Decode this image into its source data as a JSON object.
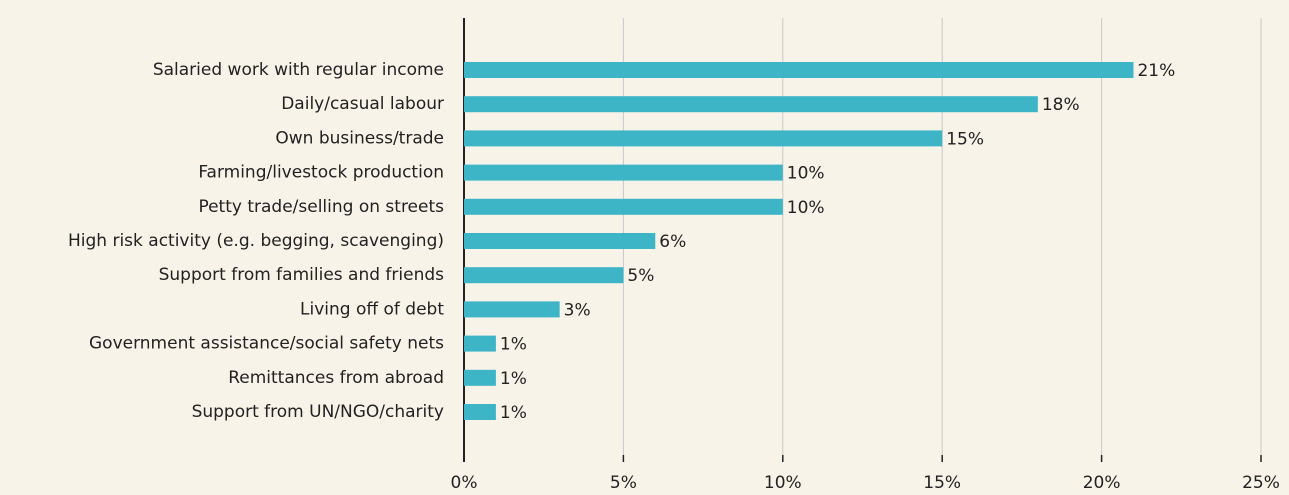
{
  "chart_data": {
    "type": "bar",
    "orientation": "horizontal",
    "categories": [
      "Salaried work with regular income",
      "Daily/casual labour",
      "Own business/trade",
      "Farming/livestock production",
      "Petty trade/selling on streets",
      "High risk activity (e.g. begging, scavenging)",
      "Support from families and friends",
      "Living off of debt",
      "Government assistance/social safety nets",
      "Remittances from abroad",
      "Support from UN/NGO/charity"
    ],
    "values": [
      21,
      18,
      15,
      10,
      10,
      6,
      5,
      3,
      1,
      1,
      1
    ],
    "value_labels": [
      "21%",
      "18%",
      "15%",
      "10%",
      "10%",
      "6%",
      "5%",
      "3%",
      "1%",
      "1%",
      "1%"
    ],
    "color": "#3db5c6",
    "xlim": [
      0,
      25
    ],
    "xticks": [
      {
        "value": 0,
        "label": "0%"
      },
      {
        "value": 5,
        "label": "5%"
      },
      {
        "value": 10,
        "label": "10%"
      },
      {
        "value": 15,
        "label": "15%"
      },
      {
        "value": 20,
        "label": "20%"
      },
      {
        "value": 25,
        "label": "25%"
      }
    ],
    "grid": true
  }
}
